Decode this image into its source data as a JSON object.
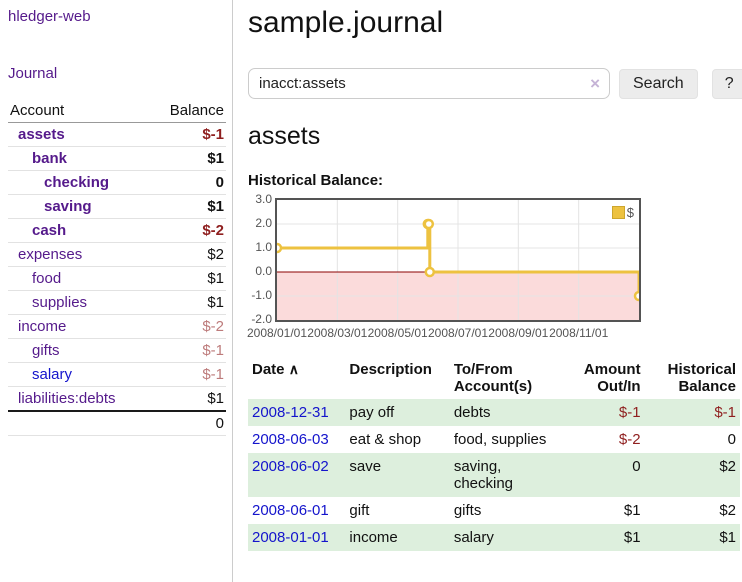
{
  "sidebar": {
    "app_title": "hledger-web",
    "nav": {
      "journal": "Journal"
    },
    "accounts_table": {
      "headers": {
        "account": "Account",
        "balance": "Balance"
      },
      "rows": [
        {
          "name": "assets",
          "balance": "$-1",
          "level": 1,
          "bold": true,
          "balance_class": "neg-strong",
          "name_class": ""
        },
        {
          "name": "bank",
          "balance": "$1",
          "level": 2,
          "bold": true,
          "balance_class": "",
          "name_class": ""
        },
        {
          "name": "checking",
          "balance": "0",
          "level": 3,
          "bold": true,
          "balance_class": "",
          "name_class": ""
        },
        {
          "name": "saving",
          "balance": "$1",
          "level": 3,
          "bold": true,
          "balance_class": "",
          "name_class": ""
        },
        {
          "name": "cash",
          "balance": "$-2",
          "level": 2,
          "bold": true,
          "balance_class": "neg-strong",
          "name_class": ""
        },
        {
          "name": "expenses",
          "balance": "$2",
          "level": 1,
          "bold": false,
          "balance_class": "",
          "name_class": ""
        },
        {
          "name": "food",
          "balance": "$1",
          "level": 2,
          "bold": false,
          "balance_class": "",
          "name_class": ""
        },
        {
          "name": "supplies",
          "balance": "$1",
          "level": 2,
          "bold": false,
          "balance_class": "",
          "name_class": ""
        },
        {
          "name": "income",
          "balance": "$-2",
          "level": 1,
          "bold": false,
          "balance_class": "neg-soft",
          "name_class": ""
        },
        {
          "name": "gifts",
          "balance": "$-1",
          "level": 2,
          "bold": false,
          "balance_class": "neg-soft",
          "name_class": ""
        },
        {
          "name": "salary",
          "balance": "$-1",
          "level": 2,
          "bold": false,
          "balance_class": "neg-soft",
          "name_class": "blue"
        },
        {
          "name": "liabilities:debts",
          "balance": "$1",
          "level": 1,
          "bold": false,
          "balance_class": "",
          "name_class": ""
        }
      ],
      "total": "0"
    }
  },
  "main": {
    "title": "sample.journal",
    "search": {
      "value": "inacct:assets",
      "clear_icon": "×",
      "search_button": "Search",
      "help_button": "?"
    },
    "account_heading": "assets",
    "chart_label": "Historical Balance:"
  },
  "chart_data": {
    "type": "line",
    "steps": true,
    "title": "Historical Balance:",
    "series": [
      {
        "name": "$",
        "color": "#edc240",
        "points": [
          [
            "2008-01-01",
            1
          ],
          [
            "2008-06-01",
            2
          ],
          [
            "2008-06-02",
            2
          ],
          [
            "2008-06-03",
            0
          ],
          [
            "2008-12-31",
            -1
          ]
        ]
      }
    ],
    "ylim": [
      -2,
      3
    ],
    "y_ticks": [
      3.0,
      2.0,
      1.0,
      0.0,
      -1.0,
      -2.0
    ],
    "x_range": [
      "2008-01-01",
      "2009-01-01"
    ],
    "x_tick_labels": [
      "2008/01/01",
      "2008/03/01",
      "2008/05/01",
      "2008/07/01",
      "2008/09/01",
      "2008/11/01"
    ],
    "x_tick_months": [
      0,
      2,
      4,
      6,
      8,
      10
    ],
    "legend": {
      "label": "$",
      "position": "top-right",
      "swatch_color": "#edc240"
    },
    "grid": true,
    "zero_line_color": "#8b0000",
    "negative_region_fill": "#fbdbdb",
    "marker": {
      "shape": "circle",
      "fill": "#ffffff"
    }
  },
  "transactions": {
    "headers": {
      "date": "Date",
      "sort_icon": "∧",
      "description": "Description",
      "accounts": "To/From Account(s)",
      "amount": "Amount Out/In",
      "balance": "Historical Balance"
    },
    "rows": [
      {
        "date": "2008-12-31",
        "description": "pay off",
        "accounts": "debts",
        "amount": "$-1",
        "balance": "$-1",
        "amount_neg": true,
        "balance_neg": true
      },
      {
        "date": "2008-06-03",
        "description": "eat & shop",
        "accounts": "food, supplies",
        "amount": "$-2",
        "balance": "0",
        "amount_neg": true,
        "balance_neg": false
      },
      {
        "date": "2008-06-02",
        "description": "save",
        "accounts": "saving, checking",
        "amount": "0",
        "balance": "$2",
        "amount_neg": false,
        "balance_neg": false
      },
      {
        "date": "2008-06-01",
        "description": "gift",
        "accounts": "gifts",
        "amount": "$1",
        "balance": "$2",
        "amount_neg": false,
        "balance_neg": false
      },
      {
        "date": "2008-01-01",
        "description": "income",
        "accounts": "salary",
        "amount": "$1",
        "balance": "$1",
        "amount_neg": false,
        "balance_neg": false
      }
    ]
  }
}
